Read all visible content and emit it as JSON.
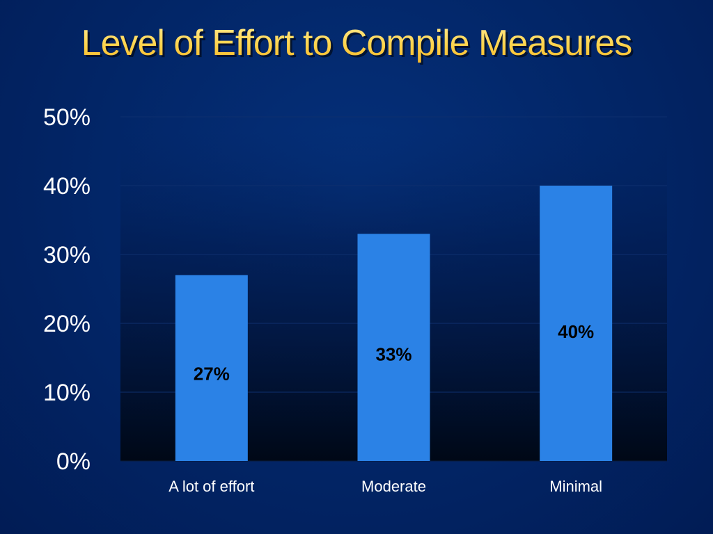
{
  "slide": {
    "title": "Level of Effort to Compile Measures"
  },
  "colors": {
    "background": "#022566",
    "title": "#ffd34a",
    "bar": "#2b82e6",
    "text": "#ffffff",
    "data_label": "#000000"
  },
  "chart_data": {
    "type": "bar",
    "title": "Level of Effort to Compile Measures",
    "categories": [
      "A lot of effort",
      "Moderate",
      "Minimal"
    ],
    "values": [
      27,
      33,
      40
    ],
    "data_labels": [
      "27%",
      "33%",
      "40%"
    ],
    "yticks": [
      "0%",
      "10%",
      "20%",
      "30%",
      "40%",
      "50%"
    ],
    "ylim": [
      0,
      50
    ],
    "ylabel": "",
    "xlabel": "",
    "grid": true,
    "legend": "none"
  }
}
